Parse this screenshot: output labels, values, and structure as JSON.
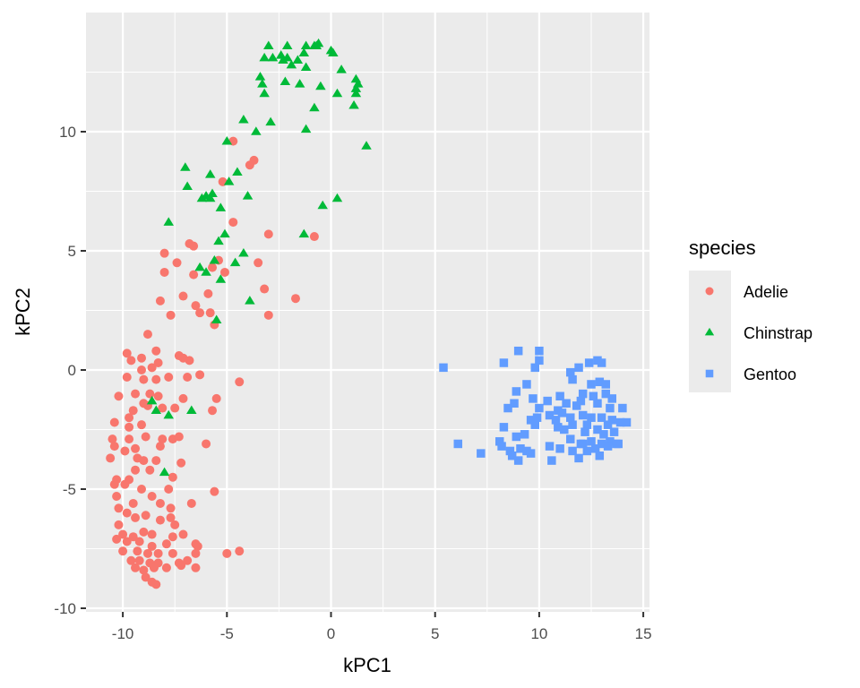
{
  "chart_data": {
    "type": "scatter",
    "title": "",
    "xlabel": "kPC1",
    "ylabel": "kPC2",
    "xlim": [
      -11.5,
      15.4
    ],
    "ylim": [
      -10.2,
      14.8
    ],
    "xticks": [
      -10,
      -5,
      0,
      5,
      10,
      15
    ],
    "yticks": [
      -10,
      -5,
      0,
      5,
      10
    ],
    "xtick_labels": [
      "-10",
      "-5",
      "0",
      "5",
      "10",
      "15"
    ],
    "ytick_labels": [
      "-10",
      "-5",
      "0",
      "5",
      "10"
    ],
    "grid": true,
    "legend": {
      "title": "species",
      "position": "right"
    },
    "series": [
      {
        "name": "Adelie",
        "marker": "circle",
        "color": "#F8766D",
        "points": [
          [
            -4.7,
            9.6
          ],
          [
            -3.7,
            8.8
          ],
          [
            -3.9,
            8.6
          ],
          [
            -5.2,
            7.9
          ],
          [
            -4.7,
            6.2
          ],
          [
            -3.0,
            5.7
          ],
          [
            -0.8,
            5.6
          ],
          [
            -6.6,
            5.2
          ],
          [
            -6.8,
            5.3
          ],
          [
            -8.0,
            4.9
          ],
          [
            -7.4,
            4.5
          ],
          [
            -5.7,
            4.3
          ],
          [
            -3.5,
            4.5
          ],
          [
            -8.0,
            4.1
          ],
          [
            -6.6,
            4.0
          ],
          [
            -5.1,
            4.1
          ],
          [
            -5.4,
            4.6
          ],
          [
            -3.2,
            3.4
          ],
          [
            -1.7,
            3.0
          ],
          [
            -7.1,
            3.1
          ],
          [
            -5.9,
            3.2
          ],
          [
            -8.2,
            2.9
          ],
          [
            -3.0,
            2.3
          ],
          [
            -6.5,
            2.7
          ],
          [
            -6.3,
            2.4
          ],
          [
            -5.8,
            2.4
          ],
          [
            -7.7,
            2.3
          ],
          [
            -5.6,
            1.9
          ],
          [
            -8.8,
            1.5
          ],
          [
            -9.8,
            0.7
          ],
          [
            -8.4,
            0.8
          ],
          [
            -9.1,
            0.5
          ],
          [
            -8.3,
            0.3
          ],
          [
            -9.6,
            0.4
          ],
          [
            -7.3,
            0.6
          ],
          [
            -7.1,
            0.5
          ],
          [
            -6.8,
            0.4
          ],
          [
            -8.6,
            0.1
          ],
          [
            -9.1,
            0.0
          ],
          [
            -6.3,
            -0.2
          ],
          [
            -4.4,
            -0.5
          ],
          [
            -9.8,
            -0.3
          ],
          [
            -9.0,
            -0.4
          ],
          [
            -8.4,
            -0.4
          ],
          [
            -7.8,
            -0.3
          ],
          [
            -6.9,
            -0.3
          ],
          [
            -5.5,
            -1.2
          ],
          [
            -10.2,
            -1.1
          ],
          [
            -9.4,
            -1.0
          ],
          [
            -8.7,
            -1.0
          ],
          [
            -8.3,
            -1.1
          ],
          [
            -7.1,
            -1.2
          ],
          [
            -9.5,
            -1.7
          ],
          [
            -9.0,
            -1.4
          ],
          [
            -8.8,
            -1.5
          ],
          [
            -8.1,
            -1.6
          ],
          [
            -7.5,
            -1.6
          ],
          [
            -5.7,
            -1.7
          ],
          [
            -9.7,
            -2.0
          ],
          [
            -10.4,
            -2.2
          ],
          [
            -9.7,
            -2.4
          ],
          [
            -9.1,
            -2.3
          ],
          [
            -10.5,
            -2.9
          ],
          [
            -9.7,
            -2.9
          ],
          [
            -8.9,
            -2.8
          ],
          [
            -8.1,
            -2.9
          ],
          [
            -7.6,
            -2.9
          ],
          [
            -7.3,
            -2.8
          ],
          [
            -6.0,
            -3.1
          ],
          [
            -10.4,
            -3.2
          ],
          [
            -9.9,
            -3.4
          ],
          [
            -9.4,
            -3.3
          ],
          [
            -8.2,
            -3.2
          ],
          [
            -10.6,
            -3.7
          ],
          [
            -9.3,
            -3.7
          ],
          [
            -9.0,
            -3.8
          ],
          [
            -8.4,
            -3.8
          ],
          [
            -7.2,
            -3.9
          ],
          [
            -10.3,
            -4.6
          ],
          [
            -9.7,
            -4.6
          ],
          [
            -9.4,
            -4.2
          ],
          [
            -8.7,
            -4.2
          ],
          [
            -7.6,
            -4.5
          ],
          [
            -10.4,
            -4.8
          ],
          [
            -9.9,
            -4.8
          ],
          [
            -9.1,
            -5.0
          ],
          [
            -7.8,
            -5.0
          ],
          [
            -5.6,
            -5.1
          ],
          [
            -10.3,
            -5.3
          ],
          [
            -9.5,
            -5.6
          ],
          [
            -8.6,
            -5.3
          ],
          [
            -8.2,
            -5.6
          ],
          [
            -7.7,
            -5.8
          ],
          [
            -6.7,
            -5.6
          ],
          [
            -10.2,
            -5.8
          ],
          [
            -9.8,
            -6.0
          ],
          [
            -9.4,
            -6.2
          ],
          [
            -8.9,
            -6.1
          ],
          [
            -8.2,
            -6.3
          ],
          [
            -7.7,
            -6.2
          ],
          [
            -7.5,
            -6.5
          ],
          [
            -10.2,
            -6.5
          ],
          [
            -10.0,
            -6.9
          ],
          [
            -9.5,
            -7.0
          ],
          [
            -9.0,
            -6.8
          ],
          [
            -8.6,
            -6.9
          ],
          [
            -7.6,
            -7.0
          ],
          [
            -7.1,
            -6.9
          ],
          [
            -10.3,
            -7.1
          ],
          [
            -9.8,
            -7.2
          ],
          [
            -9.2,
            -7.2
          ],
          [
            -8.6,
            -7.4
          ],
          [
            -7.9,
            -7.3
          ],
          [
            -6.5,
            -7.3
          ],
          [
            -10.0,
            -7.6
          ],
          [
            -9.3,
            -7.6
          ],
          [
            -8.8,
            -7.7
          ],
          [
            -8.3,
            -7.7
          ],
          [
            -7.6,
            -7.7
          ],
          [
            -6.4,
            -7.4
          ],
          [
            -5.0,
            -7.7
          ],
          [
            -4.4,
            -7.6
          ],
          [
            -9.6,
            -8.0
          ],
          [
            -9.2,
            -8.0
          ],
          [
            -8.7,
            -8.1
          ],
          [
            -8.3,
            -8.1
          ],
          [
            -7.3,
            -8.1
          ],
          [
            -6.9,
            -8.0
          ],
          [
            -6.5,
            -7.7
          ],
          [
            -9.4,
            -8.3
          ],
          [
            -9.0,
            -8.4
          ],
          [
            -8.5,
            -8.3
          ],
          [
            -7.9,
            -8.3
          ],
          [
            -6.5,
            -8.3
          ],
          [
            -7.2,
            -8.2
          ],
          [
            -8.9,
            -8.7
          ],
          [
            -8.6,
            -8.9
          ],
          [
            -8.4,
            -9.0
          ]
        ]
      },
      {
        "name": "Chinstrap",
        "marker": "triangle",
        "color": "#00BA38",
        "points": [
          [
            -3.0,
            13.6
          ],
          [
            -2.1,
            13.6
          ],
          [
            -1.2,
            13.6
          ],
          [
            -0.8,
            13.6
          ],
          [
            -0.6,
            13.7
          ],
          [
            0.1,
            13.3
          ],
          [
            -3.2,
            13.1
          ],
          [
            -2.8,
            13.1
          ],
          [
            -2.4,
            13.2
          ],
          [
            -2.1,
            13.1
          ],
          [
            -1.6,
            13.0
          ],
          [
            -1.3,
            13.3
          ],
          [
            -0.7,
            13.6
          ],
          [
            0.0,
            13.4
          ],
          [
            -2.3,
            13.0
          ],
          [
            -1.9,
            12.8
          ],
          [
            -1.2,
            12.7
          ],
          [
            0.5,
            12.6
          ],
          [
            -3.4,
            12.3
          ],
          [
            -3.3,
            12.0
          ],
          [
            -2.2,
            12.1
          ],
          [
            -1.5,
            12.0
          ],
          [
            -0.5,
            11.9
          ],
          [
            1.2,
            12.2
          ],
          [
            1.3,
            12.0
          ],
          [
            -3.2,
            11.6
          ],
          [
            0.3,
            11.6
          ],
          [
            1.2,
            11.8
          ],
          [
            1.2,
            11.6
          ],
          [
            -0.8,
            11.0
          ],
          [
            1.1,
            11.1
          ],
          [
            -4.2,
            10.5
          ],
          [
            -2.9,
            10.4
          ],
          [
            -3.6,
            10.0
          ],
          [
            -1.2,
            10.1
          ],
          [
            -5.0,
            9.6
          ],
          [
            1.7,
            9.4
          ],
          [
            -7.0,
            8.5
          ],
          [
            -5.8,
            8.2
          ],
          [
            -4.9,
            7.9
          ],
          [
            -4.5,
            8.3
          ],
          [
            -6.9,
            7.7
          ],
          [
            -6.2,
            7.2
          ],
          [
            -6.0,
            7.3
          ],
          [
            -5.8,
            7.2
          ],
          [
            -5.7,
            7.4
          ],
          [
            -4.0,
            7.3
          ],
          [
            0.3,
            7.2
          ],
          [
            -0.4,
            6.9
          ],
          [
            -5.3,
            6.8
          ],
          [
            -7.8,
            6.2
          ],
          [
            -1.3,
            5.7
          ],
          [
            -5.4,
            5.4
          ],
          [
            -5.1,
            5.7
          ],
          [
            -5.6,
            4.6
          ],
          [
            -4.6,
            4.5
          ],
          [
            -4.2,
            4.9
          ],
          [
            -6.3,
            4.3
          ],
          [
            -6.0,
            4.1
          ],
          [
            -5.3,
            3.8
          ],
          [
            -3.9,
            2.9
          ],
          [
            -5.5,
            2.1
          ],
          [
            -8.6,
            -1.3
          ],
          [
            -8.4,
            -1.7
          ],
          [
            -7.8,
            -1.9
          ],
          [
            -6.7,
            -1.7
          ],
          [
            -8.0,
            -4.3
          ]
        ]
      },
      {
        "name": "Gentoo",
        "marker": "square",
        "color": "#619CFF",
        "points": [
          [
            5.4,
            0.1
          ],
          [
            8.3,
            0.3
          ],
          [
            9.0,
            0.8
          ],
          [
            10.0,
            0.8
          ],
          [
            10.0,
            0.4
          ],
          [
            9.8,
            0.1
          ],
          [
            11.5,
            -0.1
          ],
          [
            11.9,
            0.1
          ],
          [
            12.4,
            0.3
          ],
          [
            12.8,
            0.4
          ],
          [
            13.0,
            0.3
          ],
          [
            9.4,
            -0.6
          ],
          [
            8.9,
            -0.9
          ],
          [
            11.6,
            -0.4
          ],
          [
            12.5,
            -0.6
          ],
          [
            12.9,
            -0.5
          ],
          [
            13.2,
            -0.6
          ],
          [
            11.0,
            -1.1
          ],
          [
            12.1,
            -1.0
          ],
          [
            12.6,
            -1.1
          ],
          [
            13.2,
            -1.0
          ],
          [
            13.5,
            -1.2
          ],
          [
            8.8,
            -1.4
          ],
          [
            9.7,
            -1.2
          ],
          [
            10.4,
            -1.3
          ],
          [
            11.3,
            -1.4
          ],
          [
            11.8,
            -1.5
          ],
          [
            12.0,
            -1.3
          ],
          [
            12.8,
            -1.4
          ],
          [
            13.4,
            -1.6
          ],
          [
            14.0,
            -1.6
          ],
          [
            8.5,
            -1.6
          ],
          [
            10.0,
            -1.6
          ],
          [
            10.5,
            -1.9
          ],
          [
            10.9,
            -1.7
          ],
          [
            11.1,
            -1.8
          ],
          [
            11.5,
            -2.0
          ],
          [
            12.1,
            -1.9
          ],
          [
            12.5,
            -2.0
          ],
          [
            13.0,
            -2.0
          ],
          [
            13.5,
            -2.1
          ],
          [
            13.9,
            -2.2
          ],
          [
            14.2,
            -2.2
          ],
          [
            9.6,
            -2.1
          ],
          [
            9.9,
            -2.0
          ],
          [
            10.9,
            -2.4
          ],
          [
            11.2,
            -2.5
          ],
          [
            11.6,
            -2.3
          ],
          [
            12.3,
            -2.3
          ],
          [
            12.8,
            -2.5
          ],
          [
            13.3,
            -2.3
          ],
          [
            8.3,
            -2.4
          ],
          [
            9.8,
            -2.3
          ],
          [
            10.8,
            -2.1
          ],
          [
            12.2,
            -2.6
          ],
          [
            13.1,
            -2.7
          ],
          [
            13.6,
            -2.6
          ],
          [
            6.1,
            -3.1
          ],
          [
            8.1,
            -3.0
          ],
          [
            8.9,
            -2.8
          ],
          [
            9.3,
            -2.7
          ],
          [
            11.5,
            -2.9
          ],
          [
            12.0,
            -3.1
          ],
          [
            12.5,
            -3.0
          ],
          [
            13.0,
            -3.1
          ],
          [
            13.4,
            -3.0
          ],
          [
            13.8,
            -3.1
          ],
          [
            8.2,
            -3.2
          ],
          [
            8.6,
            -3.4
          ],
          [
            9.1,
            -3.3
          ],
          [
            9.4,
            -3.4
          ],
          [
            10.5,
            -3.2
          ],
          [
            11.0,
            -3.3
          ],
          [
            11.6,
            -3.4
          ],
          [
            12.1,
            -3.1
          ],
          [
            12.7,
            -3.3
          ],
          [
            13.3,
            -3.2
          ],
          [
            13.7,
            -3.1
          ],
          [
            7.2,
            -3.5
          ],
          [
            8.7,
            -3.6
          ],
          [
            9.0,
            -3.8
          ],
          [
            9.6,
            -3.5
          ],
          [
            10.6,
            -3.8
          ],
          [
            11.9,
            -3.7
          ],
          [
            12.3,
            -3.4
          ],
          [
            12.9,
            -3.6
          ]
        ]
      }
    ]
  },
  "legend": {
    "title": "species",
    "items": [
      {
        "label": "Adelie",
        "color": "#F8766D",
        "marker": "circle"
      },
      {
        "label": "Chinstrap",
        "color": "#00BA38",
        "marker": "triangle"
      },
      {
        "label": "Gentoo",
        "color": "#619CFF",
        "marker": "square"
      }
    ]
  },
  "axes": {
    "xlabel": "kPC1",
    "ylabel": "kPC2"
  }
}
